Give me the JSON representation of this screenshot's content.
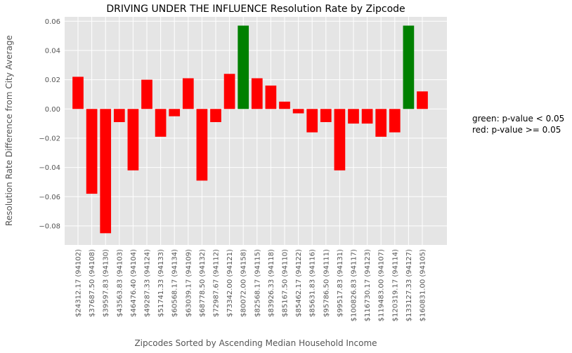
{
  "chart_data": {
    "type": "bar",
    "title": "DRIVING UNDER THE INFLUENCE Resolution Rate by Zipcode",
    "xlabel": "Zipcodes Sorted by Ascending Median Household Income",
    "ylabel": "Resolution Rate Difference from City Average",
    "ylim": [
      -0.093,
      0.063
    ],
    "yticks": [
      0.06,
      0.04,
      0.02,
      0.0,
      -0.02,
      -0.04,
      -0.06,
      -0.08
    ],
    "ytick_labels": [
      "0.06",
      "0.04",
      "0.02",
      "0.00",
      "−0.02",
      "−0.04",
      "−0.06",
      "−0.08"
    ],
    "grid": true,
    "categories": [
      "$24312.17 (94102)",
      "$37687.50 (94108)",
      "$39597.83 (94130)",
      "$43563.83 (94103)",
      "$46476.40 (94104)",
      "$49287.33 (94124)",
      "$51741.33 (94133)",
      "$60568.17 (94134)",
      "$63039.17 (94109)",
      "$68778.50 (94132)",
      "$72987.67 (94112)",
      "$73342.00 (94121)",
      "$80072.00 (94158)",
      "$82568.17 (94115)",
      "$83926.33 (94118)",
      "$85167.50 (94110)",
      "$85462.17 (94122)",
      "$85631.83 (94116)",
      "$95786.50 (94111)",
      "$99517.83 (94131)",
      "$100826.83 (94117)",
      "$116730.17 (94123)",
      "$119483.00 (94107)",
      "$120319.17 (94114)",
      "$133127.33 (94127)",
      "$160831.00 (94105)"
    ],
    "values": [
      0.022,
      -0.058,
      -0.085,
      -0.009,
      -0.042,
      0.02,
      -0.019,
      -0.005,
      0.021,
      -0.049,
      -0.009,
      0.024,
      0.057,
      0.021,
      0.016,
      0.005,
      -0.003,
      -0.016,
      -0.009,
      -0.042,
      -0.01,
      -0.01,
      -0.019,
      -0.016,
      0.057,
      0.012
    ],
    "significant": [
      false,
      false,
      false,
      false,
      false,
      false,
      false,
      false,
      false,
      false,
      false,
      false,
      true,
      false,
      false,
      false,
      false,
      false,
      false,
      false,
      false,
      false,
      false,
      false,
      true,
      false
    ],
    "colors": {
      "significant": "#008000",
      "not_significant": "#ff0000",
      "background": "#e5e5e5",
      "grid": "#ffffff"
    },
    "annotations": [
      "green: p-value < 0.05",
      "red: p-value >= 0.05"
    ]
  }
}
